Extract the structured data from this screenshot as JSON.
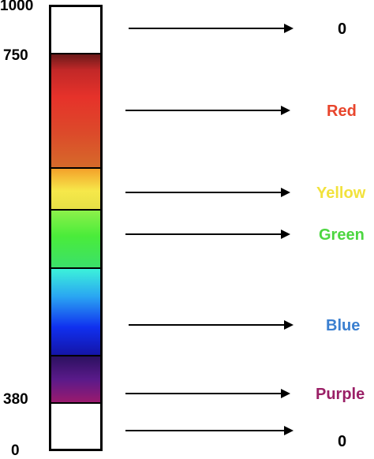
{
  "scale": {
    "ticks": [
      {
        "label": "1000"
      },
      {
        "label": "750"
      },
      {
        "label": "380"
      },
      {
        "label": "0"
      }
    ]
  },
  "bands": [
    {
      "name": "red",
      "label": "Red",
      "color": "#e8452c"
    },
    {
      "name": "yellow",
      "label": "Yellow",
      "color": "#f2e23c"
    },
    {
      "name": "green",
      "label": "Green",
      "color": "#4cd640"
    },
    {
      "name": "blue",
      "label": "Blue",
      "color": "#3a7fd0"
    },
    {
      "name": "purple",
      "label": "Purple",
      "color": "#9a1f66"
    }
  ],
  "outside_label_top": "0",
  "outside_label_bottom": "0"
}
